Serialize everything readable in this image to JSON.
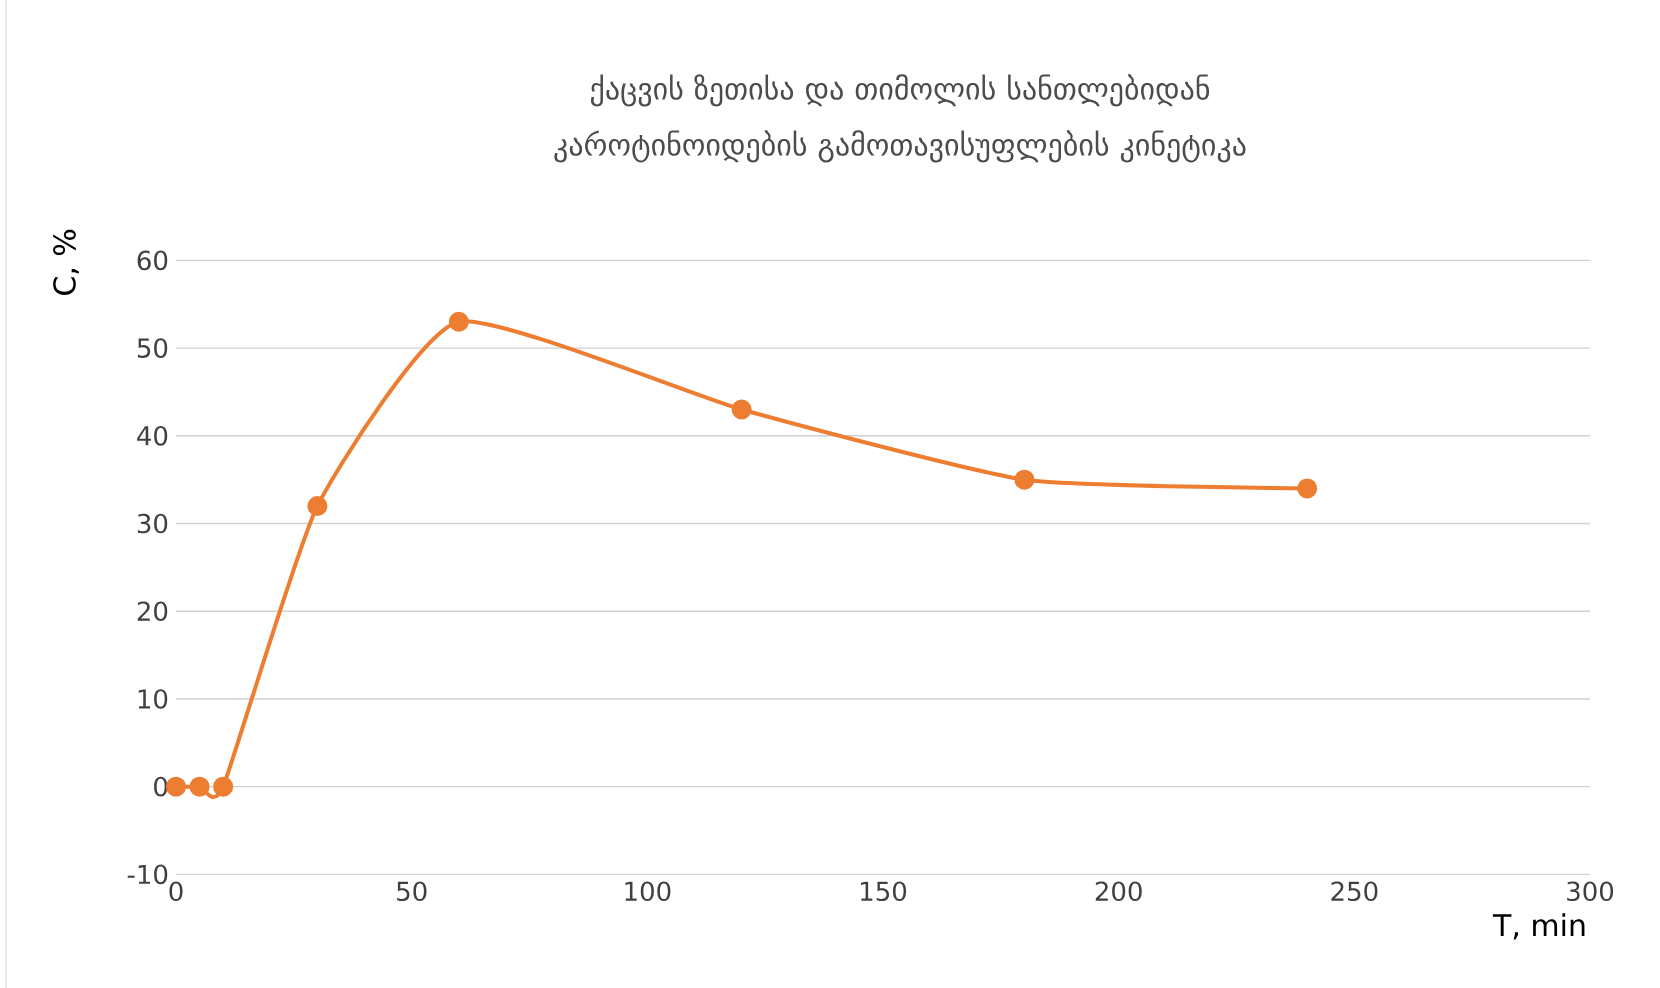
{
  "chart_data": {
    "type": "line",
    "title": "ქაცვის ზეთისა და თიმოლის სანთლებიდან კაროტინოიდების გამოთავისუფლების კინეტიკა",
    "xlabel": "T, min",
    "ylabel": "C, %",
    "x": [
      0,
      5,
      10,
      30,
      60,
      120,
      180,
      240
    ],
    "series": [
      {
        "color": "#ed7d31",
        "values": [
          0,
          0,
          0,
          32,
          53,
          43,
          35,
          34
        ]
      }
    ],
    "xlim": [
      0,
      300
    ],
    "ylim": [
      -10,
      60
    ],
    "xticks": [
      0,
      50,
      100,
      150,
      200,
      250,
      300
    ],
    "yticks": [
      -10,
      0,
      10,
      20,
      30,
      40,
      50,
      60
    ],
    "grid": "y",
    "marker": "circle",
    "line_style": "solid"
  }
}
